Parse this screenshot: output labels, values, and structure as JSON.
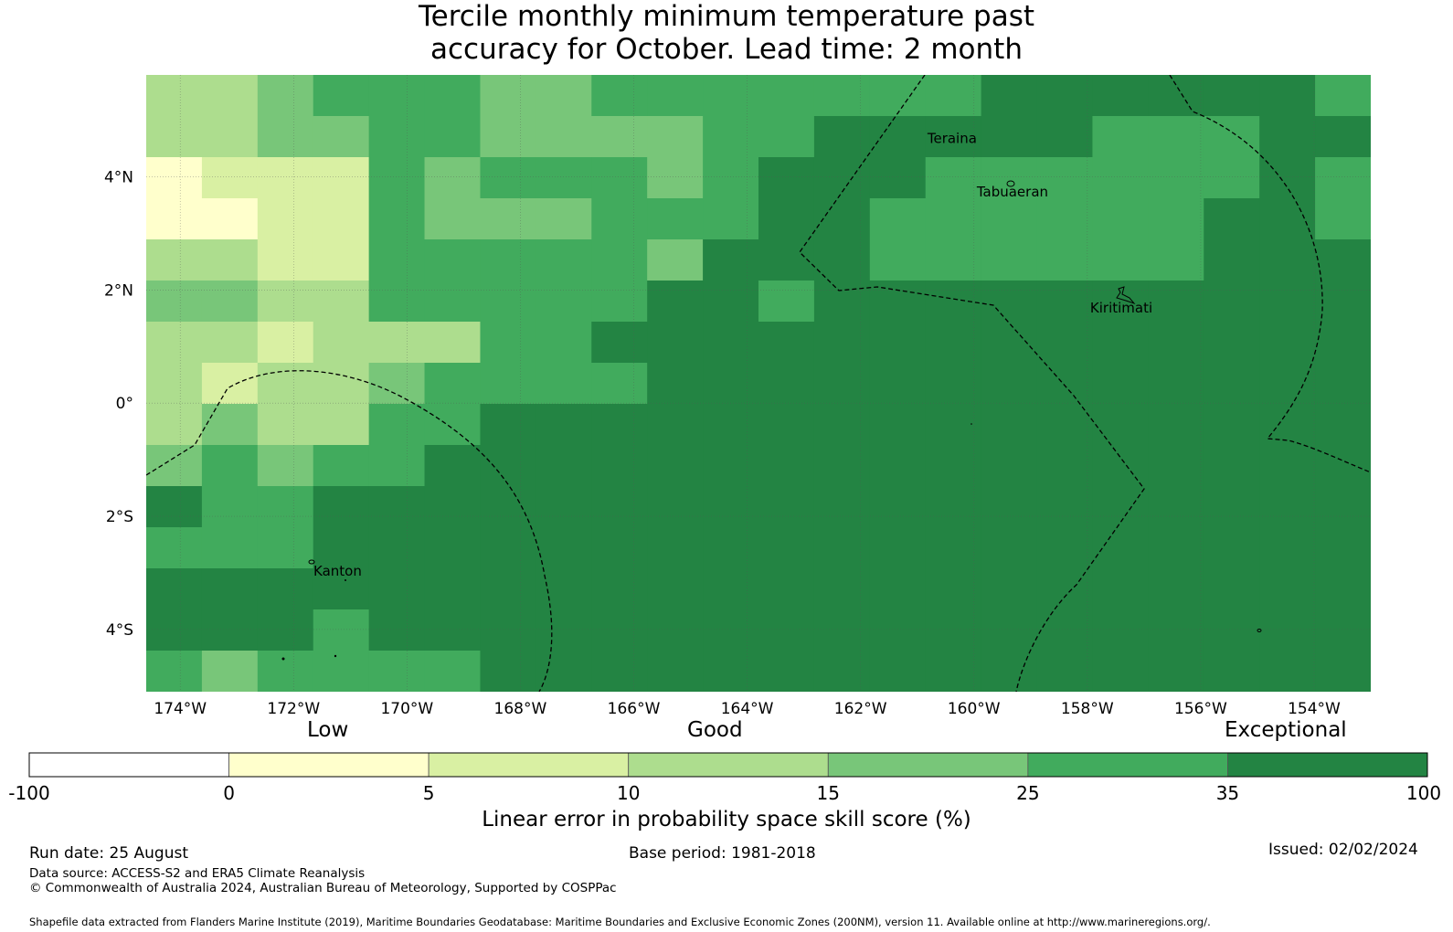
{
  "title": {
    "line1": "Tercile monthly minimum temperature past",
    "line2": "accuracy for October. Lead time: 2 month"
  },
  "map": {
    "lon_range": [
      -174.6,
      -153.0
    ],
    "lat_range": [
      -5.1,
      5.8
    ],
    "lon_ticks": [
      {
        "value": -174,
        "label": "174°W"
      },
      {
        "value": -172,
        "label": "172°W"
      },
      {
        "value": -170,
        "label": "170°W"
      },
      {
        "value": -168,
        "label": "168°W"
      },
      {
        "value": -166,
        "label": "166°W"
      },
      {
        "value": -164,
        "label": "164°W"
      },
      {
        "value": -162,
        "label": "162°W"
      },
      {
        "value": -160,
        "label": "160°W"
      },
      {
        "value": -158,
        "label": "158°W"
      },
      {
        "value": -156,
        "label": "156°W"
      },
      {
        "value": -154,
        "label": "154°W"
      }
    ],
    "lat_ticks": [
      {
        "value": 4,
        "label": "4°N"
      },
      {
        "value": 2,
        "label": "2°N"
      },
      {
        "value": 0,
        "label": "0°"
      },
      {
        "value": -2,
        "label": "2°S"
      },
      {
        "value": -4,
        "label": "4°S"
      }
    ],
    "places": [
      {
        "name": "Teraina",
        "lon": -160.82,
        "lat": 4.6
      },
      {
        "name": "Tabuaeran",
        "lon": -159.95,
        "lat": 3.65
      },
      {
        "name": "Kiritimati",
        "lon": -157.95,
        "lat": 1.6
      },
      {
        "name": "Kanton",
        "lon": -171.65,
        "lat": -3.05
      }
    ],
    "skill_grid": {
      "cell_size_deg": 0.83,
      "category_colors": [
        "#ffffff",
        "#ffffcc",
        "#d9f0a3",
        "#addd8e",
        "#78c679",
        "#41ab5d",
        "#238443"
      ],
      "rows_top_to_bottom": [
        "3345554455555556666665",
        "3344554444556666655566",
        "1222545554566655555565",
        "1122544455566555555665",
        "3322555554666555555666",
        "4433555556656666666666",
        "3323335566666666666666",
        "3233455556666666666666",
        "3433556666666666666666",
        "4545566666666666666666",
        "6556666666666666666666",
        "5556666666666666666666",
        "6666666666666666666666",
        "6665666666666666666666",
        "5455556666666666666666"
      ]
    },
    "grid_lines": true
  },
  "colorbar": {
    "categories": [
      {
        "label": "Low",
        "at": 12.5
      },
      {
        "label": "Good",
        "at": 30.0
      },
      {
        "label": "Exceptional",
        "at": 15.0
      }
    ],
    "bins": [
      {
        "from": "-100",
        "to": "0",
        "color": "#ffffff"
      },
      {
        "from": "0",
        "to": "5",
        "color": "#ffffcc"
      },
      {
        "from": "5",
        "to": "10",
        "color": "#d9f0a3"
      },
      {
        "from": "10",
        "to": "15",
        "color": "#addd8e"
      },
      {
        "from": "15",
        "to": "25",
        "color": "#78c679"
      },
      {
        "from": "25",
        "to": "35",
        "color": "#41ab5d"
      },
      {
        "from": "35",
        "to": "100",
        "color": "#238443"
      }
    ],
    "tick_labels": [
      "-100",
      "0",
      "5",
      "10",
      "15",
      "25",
      "35",
      "100"
    ],
    "label": "Linear error in probability space skill score (%)"
  },
  "footer": {
    "run_date": "Run date: 25 August",
    "base_period": "Base period: 1981-2018",
    "issued": "Issued: 02/02/2024",
    "data_source": "Data source: ACCESS-S2 and ERA5 Climate Reanalysis",
    "copyright": "© Commonwealth of Australia 2024, Australian Bureau of Meteorology, Supported by COSPPac",
    "shapefile": "Shapefile data extracted from Flanders Marine Institute (2019), Maritime Boundaries Geodatabase: Maritime Boundaries and Exclusive Economic Zones (200NM), version 11. Available online at http://www.marineregions.org/."
  }
}
